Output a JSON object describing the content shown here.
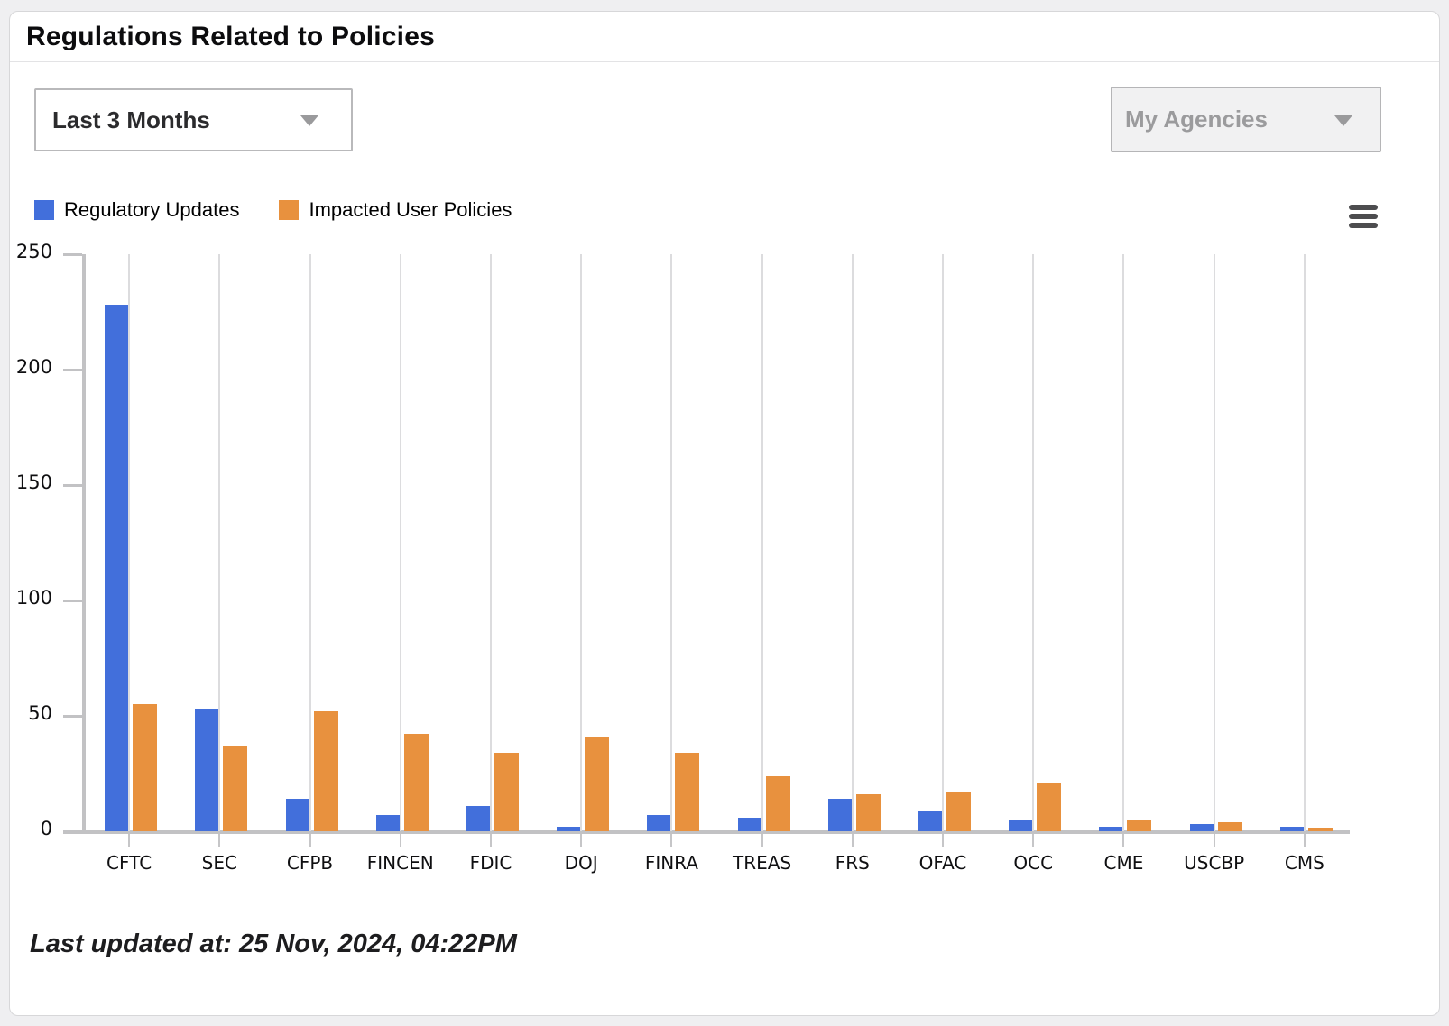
{
  "header": {
    "title": "Regulations Related to Policies"
  },
  "controls": {
    "time_range_value": "Last 3 Months",
    "agencies_value": "My Agencies"
  },
  "icons": {
    "menu": "hamburger-icon",
    "dropdown": "chevron-down-icon"
  },
  "colors": {
    "regulatory_updates": "#426FDB",
    "impacted_user_policies": "#E8913E",
    "axis": "#C2C2C4",
    "gridline": "#DCDCDE"
  },
  "footer": {
    "last_updated": "Last updated at: 25 Nov, 2024, 04:22PM"
  },
  "chart_data": {
    "type": "bar",
    "title": "",
    "xlabel": "",
    "ylabel": "",
    "categories": [
      "CFTC",
      "SEC",
      "CFPB",
      "FINCEN",
      "FDIC",
      "DOJ",
      "FINRA",
      "TREAS",
      "FRS",
      "OFAC",
      "OCC",
      "CME",
      "USCBP",
      "CMS"
    ],
    "series": [
      {
        "name": "Regulatory Updates",
        "color": "#426FDB",
        "values": [
          228,
          53,
          14,
          7,
          11,
          2,
          7,
          6,
          14,
          9,
          5,
          2,
          3,
          2
        ]
      },
      {
        "name": "Impacted User Policies",
        "color": "#E8913E",
        "values": [
          55,
          37,
          52,
          42,
          34,
          41,
          34,
          24,
          16,
          17,
          21,
          5,
          4,
          1.5
        ]
      }
    ],
    "ylim": [
      0,
      250
    ],
    "yticks": [
      0,
      50,
      100,
      150,
      200,
      250
    ],
    "grid": "vertical category gridlines only",
    "legend_position": "top-left"
  }
}
